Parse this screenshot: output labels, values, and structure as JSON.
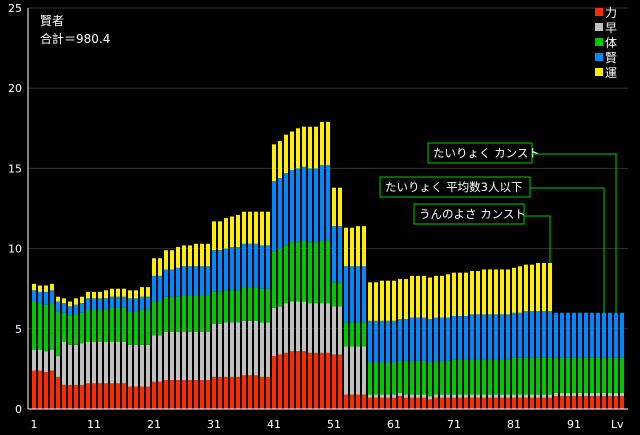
{
  "chart_data": {
    "type": "bar",
    "stacked": true,
    "title": "賢者",
    "subtitle": "合計＝980.4",
    "xlabel": "Lv",
    "ylabel": "",
    "ylim": [
      0,
      25
    ],
    "yticks": [
      "0",
      "5",
      "10",
      "15",
      "20",
      "25"
    ],
    "xticks": [
      "1",
      "11",
      "21",
      "31",
      "41",
      "51",
      "61",
      "71",
      "81",
      "91"
    ],
    "grid": true,
    "legend_position": "top-right",
    "levels_from": 1,
    "levels_to": 99,
    "series": [
      {
        "name": "力",
        "color": "#ff2a00",
        "values": [
          2.4,
          2.4,
          2.3,
          2.4,
          2.0,
          1.5,
          1.5,
          1.5,
          1.5,
          1.6,
          1.6,
          1.6,
          1.6,
          1.6,
          1.6,
          1.6,
          1.4,
          1.4,
          1.4,
          1.4,
          1.7,
          1.7,
          1.8,
          1.8,
          1.8,
          1.8,
          1.8,
          1.8,
          1.8,
          1.8,
          2.0,
          2.0,
          2.0,
          2.0,
          2.0,
          2.1,
          2.1,
          2.1,
          2.0,
          2.0,
          3.3,
          3.4,
          3.5,
          3.6,
          3.6,
          3.6,
          3.5,
          3.5,
          3.5,
          3.5,
          3.4,
          3.4,
          0.9,
          0.9,
          0.9,
          0.9,
          0.7,
          0.7,
          0.7,
          0.7,
          0.7,
          0.8,
          0.7,
          0.7,
          0.7,
          0.7,
          0.6,
          0.7,
          0.7,
          0.7,
          0.7,
          0.7,
          0.7,
          0.7,
          0.7,
          0.7,
          0.7,
          0.7,
          0.7,
          0.7,
          0.7,
          0.7,
          0.7,
          0.7,
          0.7,
          0.7,
          0.7,
          0.8,
          0.8,
          0.8,
          0.8,
          0.8,
          0.8,
          0.8,
          0.8,
          0.8,
          0.8,
          0.8,
          0.8
        ]
      },
      {
        "name": "早",
        "color": "#c0c0c0",
        "values": [
          1.3,
          1.3,
          1.3,
          1.3,
          1.3,
          2.7,
          2.5,
          2.5,
          2.6,
          2.6,
          2.6,
          2.6,
          2.6,
          2.6,
          2.6,
          2.6,
          2.6,
          2.6,
          2.6,
          2.6,
          2.9,
          2.9,
          3.0,
          3.0,
          3.0,
          3.0,
          3.0,
          3.0,
          3.0,
          3.0,
          3.3,
          3.3,
          3.4,
          3.4,
          3.4,
          3.4,
          3.4,
          3.4,
          3.4,
          3.4,
          3.0,
          3.0,
          3.1,
          3.1,
          3.1,
          3.1,
          3.1,
          3.1,
          3.1,
          3.1,
          3.0,
          3.0,
          3.0,
          3.0,
          3.0,
          3.0,
          0.2,
          0.2,
          0.2,
          0.2,
          0.2,
          0.2,
          0.2,
          0.2,
          0.2,
          0.2,
          0.2,
          0.2,
          0.2,
          0.2,
          0.2,
          0.2,
          0.2,
          0.2,
          0.2,
          0.2,
          0.2,
          0.2,
          0.2,
          0.2,
          0.2,
          0.2,
          0.2,
          0.2,
          0.2,
          0.2,
          0.2,
          0.2,
          0.2,
          0.2,
          0.2,
          0.2,
          0.2,
          0.2,
          0.2,
          0.2,
          0.2,
          0.2,
          0.2
        ]
      },
      {
        "name": "体",
        "color": "#00c800",
        "values": [
          3.0,
          2.9,
          2.9,
          2.9,
          2.8,
          1.8,
          1.8,
          1.9,
          1.9,
          2.0,
          2.0,
          2.0,
          2.0,
          2.1,
          2.1,
          2.1,
          2.1,
          2.1,
          2.2,
          2.2,
          2.1,
          2.1,
          2.2,
          2.2,
          2.2,
          2.3,
          2.3,
          2.3,
          2.3,
          2.3,
          2.0,
          2.0,
          2.0,
          2.0,
          2.0,
          2.1,
          2.1,
          2.1,
          2.1,
          2.1,
          3.5,
          3.6,
          3.6,
          3.7,
          3.7,
          3.8,
          3.8,
          3.8,
          3.9,
          3.9,
          1.5,
          1.5,
          1.5,
          1.5,
          1.5,
          1.5,
          2.0,
          2.0,
          2.0,
          2.0,
          2.0,
          2.0,
          2.1,
          2.1,
          2.1,
          2.1,
          2.1,
          2.1,
          2.1,
          2.1,
          2.2,
          2.2,
          2.2,
          2.2,
          2.2,
          2.2,
          2.2,
          2.2,
          2.2,
          2.2,
          2.3,
          2.3,
          2.3,
          2.3,
          2.3,
          2.3,
          2.3,
          2.2,
          2.2,
          2.2,
          2.2,
          2.2,
          2.2,
          2.2,
          2.2,
          2.2,
          2.2,
          2.2,
          2.2
        ]
      },
      {
        "name": "賢",
        "color": "#0088ff",
        "values": [
          0.7,
          0.7,
          0.8,
          0.8,
          0.6,
          0.6,
          0.6,
          0.6,
          0.6,
          0.7,
          0.7,
          0.7,
          0.7,
          0.7,
          0.7,
          0.7,
          0.8,
          0.8,
          0.8,
          0.8,
          1.6,
          1.6,
          1.7,
          1.7,
          1.8,
          1.8,
          1.8,
          1.8,
          1.8,
          1.8,
          2.6,
          2.6,
          2.6,
          2.7,
          2.7,
          2.7,
          2.7,
          2.7,
          2.7,
          2.7,
          4.4,
          4.4,
          4.5,
          4.5,
          4.6,
          4.6,
          4.6,
          4.6,
          4.7,
          4.7,
          3.5,
          3.5,
          3.5,
          3.5,
          3.5,
          3.5,
          2.6,
          2.6,
          2.6,
          2.6,
          2.6,
          2.6,
          2.6,
          2.7,
          2.7,
          2.7,
          2.7,
          2.7,
          2.7,
          2.7,
          2.7,
          2.7,
          2.7,
          2.8,
          2.8,
          2.8,
          2.8,
          2.8,
          2.8,
          2.8,
          2.8,
          2.8,
          2.9,
          2.9,
          2.9,
          2.9,
          2.9,
          2.8,
          2.8,
          2.8,
          2.8,
          2.8,
          2.8,
          2.8,
          2.8,
          2.8,
          2.8,
          2.8,
          2.8
        ]
      },
      {
        "name": "運",
        "color": "#ffee00",
        "values": [
          0.4,
          0.4,
          0.4,
          0.4,
          0.3,
          0.3,
          0.3,
          0.4,
          0.4,
          0.4,
          0.4,
          0.4,
          0.5,
          0.5,
          0.5,
          0.5,
          0.5,
          0.5,
          0.6,
          0.6,
          1.1,
          1.1,
          1.2,
          1.2,
          1.3,
          1.3,
          1.3,
          1.4,
          1.4,
          1.4,
          1.8,
          1.8,
          1.9,
          1.9,
          2.0,
          2.0,
          2.0,
          2.0,
          2.1,
          2.1,
          2.3,
          2.3,
          2.4,
          2.4,
          2.5,
          2.5,
          2.6,
          2.6,
          2.7,
          2.7,
          2.4,
          2.4,
          2.4,
          2.4,
          2.5,
          2.5,
          2.4,
          2.4,
          2.5,
          2.5,
          2.5,
          2.5,
          2.5,
          2.6,
          2.6,
          2.6,
          2.6,
          2.6,
          2.6,
          2.7,
          2.7,
          2.7,
          2.7,
          2.7,
          2.7,
          2.8,
          2.8,
          2.8,
          2.8,
          2.8,
          2.8,
          2.9,
          2.9,
          2.9,
          3.0,
          3.0,
          3.0,
          0,
          0,
          0,
          0,
          0,
          0,
          0,
          0,
          0,
          0,
          0,
          0
        ]
      }
    ],
    "annotations": [
      {
        "text": "たいりょく カンスト",
        "level": 98
      },
      {
        "text": "たいりょく 平均数3人以下",
        "level": 96
      },
      {
        "text": "うんのよさ カンスト",
        "level": 87
      }
    ]
  },
  "colors": {
    "background": "#000000",
    "grid": "#333333",
    "axis": "#ffffff",
    "annotation": "#00cc00"
  }
}
